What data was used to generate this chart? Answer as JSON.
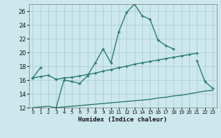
{
  "title": "",
  "xlabel": "Humidex (Indice chaleur)",
  "background_color": "#cce8ec",
  "grid_color": "#aacdd4",
  "line_color": "#2a7a6a",
  "xlim": [
    -0.5,
    23.5
  ],
  "ylim": [
    12,
    27
  ],
  "xticks": [
    0,
    1,
    2,
    3,
    4,
    5,
    6,
    7,
    8,
    9,
    10,
    11,
    12,
    13,
    14,
    15,
    16,
    17,
    18,
    19,
    20,
    21,
    22,
    23
  ],
  "yticks": [
    12,
    14,
    16,
    18,
    20,
    22,
    24,
    26
  ],
  "line1_x": [
    0,
    1,
    3,
    4,
    5,
    6,
    7,
    8,
    9,
    10,
    11,
    12,
    13,
    14,
    15,
    16,
    17,
    18,
    21,
    22,
    23
  ],
  "line1_y": [
    16.3,
    17.8,
    12.0,
    16.0,
    15.8,
    15.5,
    16.6,
    18.5,
    20.5,
    18.5,
    23.0,
    25.8,
    27.0,
    25.3,
    24.8,
    21.8,
    21.0,
    20.5,
    18.8,
    15.8,
    14.8
  ],
  "line2_x": [
    0,
    1,
    2,
    3,
    4,
    5,
    6,
    7,
    8,
    9,
    10,
    11,
    12,
    13,
    14,
    15,
    16,
    17,
    18,
    19,
    20,
    21
  ],
  "line2_y": [
    16.3,
    16.5,
    16.7,
    16.1,
    16.3,
    16.4,
    16.6,
    16.8,
    17.0,
    17.3,
    17.5,
    17.8,
    18.0,
    18.3,
    18.5,
    18.7,
    18.9,
    19.1,
    19.3,
    19.5,
    19.7,
    19.9
  ],
  "line3_x": [
    0,
    1,
    2,
    3,
    4,
    5,
    6,
    7,
    8,
    9,
    10,
    11,
    12,
    13,
    14,
    15,
    16,
    17,
    18,
    19,
    20,
    21,
    22,
    23
  ],
  "line3_y": [
    12.0,
    12.1,
    12.2,
    12.0,
    12.1,
    12.2,
    12.3,
    12.4,
    12.5,
    12.6,
    12.7,
    12.8,
    12.9,
    13.0,
    13.1,
    13.2,
    13.4,
    13.5,
    13.7,
    13.8,
    14.0,
    14.2,
    14.4,
    14.5
  ]
}
